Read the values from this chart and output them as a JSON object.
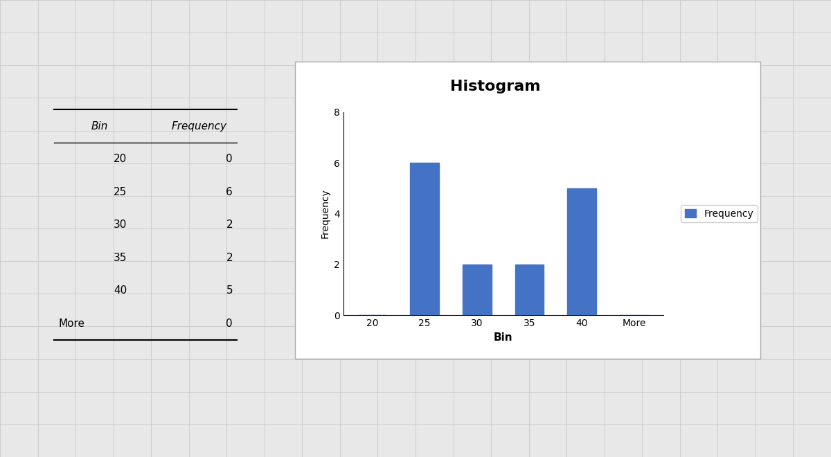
{
  "title": "Histogram",
  "bins": [
    "20",
    "25",
    "30",
    "35",
    "40",
    "More"
  ],
  "frequencies": [
    0,
    6,
    2,
    2,
    5,
    0
  ],
  "bar_color": "#4472C4",
  "xlabel": "Bin",
  "ylabel": "Frequency",
  "ylim": [
    0,
    8
  ],
  "yticks": [
    0,
    2,
    4,
    6,
    8
  ],
  "legend_label": "Frequency",
  "table_bins": [
    "20",
    "25",
    "30",
    "35",
    "40",
    "More"
  ],
  "table_freqs": [
    0,
    6,
    2,
    2,
    5,
    0
  ],
  "bg_color": "#E8E8E8",
  "chart_bg": "#FFFFFF",
  "grid_color": "#C8C8C8"
}
